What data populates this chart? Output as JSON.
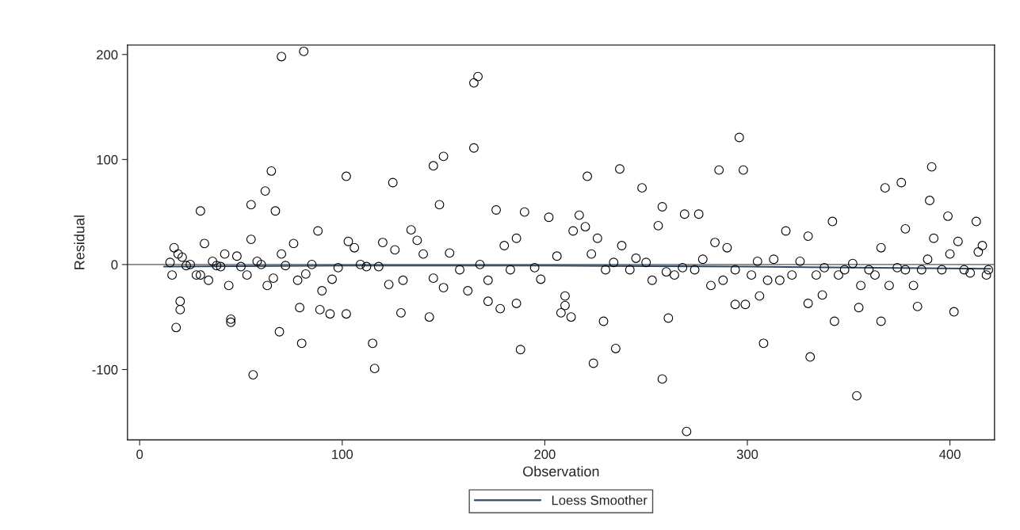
{
  "chart_data": {
    "type": "scatter",
    "xlabel": "Observation",
    "ylabel": "Residual",
    "xlim": [
      -6,
      422
    ],
    "ylim": [
      -167,
      209
    ],
    "xticks": [
      0,
      100,
      200,
      300,
      400
    ],
    "yticks": [
      -100,
      0,
      100,
      200
    ],
    "grid": false,
    "legend": "bottom",
    "ref_lines": [
      {
        "axis": "y",
        "value": 0,
        "color": "#555555"
      }
    ],
    "series": [
      {
        "marker": "circle",
        "color": "#000000",
        "x": [
          70,
          81,
          165,
          167,
          165,
          296,
          286,
          298,
          391,
          65,
          102,
          150,
          145,
          221,
          237,
          248,
          125,
          62,
          67,
          30,
          55,
          148,
          368,
          376,
          390,
          399,
          413,
          269,
          276,
          258,
          342,
          378,
          18,
          56,
          69,
          80,
          116,
          115,
          143,
          188,
          224,
          235,
          258,
          270,
          308,
          331,
          354,
          343,
          366,
          402,
          45,
          45,
          229,
          294,
          299,
          210,
          20,
          20,
          79,
          89,
          94,
          102,
          129,
          172,
          178,
          186,
          208,
          213,
          261,
          330,
          337,
          306,
          355,
          384,
          15,
          16,
          17,
          19,
          21,
          23,
          25,
          28,
          30,
          32,
          34,
          36,
          38,
          40,
          42,
          44,
          48,
          50,
          53,
          55,
          58,
          60,
          63,
          66,
          70,
          72,
          76,
          78,
          82,
          85,
          88,
          90,
          95,
          98,
          103,
          106,
          109,
          112,
          118,
          120,
          123,
          126,
          130,
          134,
          137,
          140,
          145,
          150,
          153,
          158,
          162,
          168,
          172,
          176,
          180,
          183,
          186,
          190,
          195,
          198,
          202,
          206,
          210,
          214,
          217,
          220,
          223,
          226,
          230,
          234,
          238,
          242,
          245,
          250,
          253,
          256,
          260,
          264,
          268,
          274,
          278,
          282,
          284,
          288,
          290,
          294,
          302,
          305,
          310,
          313,
          316,
          319,
          322,
          326,
          330,
          334,
          338,
          345,
          348,
          352,
          356,
          360,
          363,
          366,
          370,
          374,
          378,
          382,
          386,
          389,
          392,
          396,
          400,
          404,
          407,
          410,
          414,
          416,
          418,
          419
        ],
        "values": [
          198,
          203,
          173,
          179,
          111,
          121,
          90,
          90,
          93,
          89,
          84,
          103,
          94,
          84,
          91,
          73,
          78,
          70,
          51,
          51,
          57,
          57,
          73,
          78,
          61,
          46,
          41,
          48,
          48,
          55,
          41,
          34,
          -60,
          -105,
          -64,
          -75,
          -99,
          -75,
          -50,
          -81,
          -94,
          -80,
          -109,
          -159,
          -75,
          -88,
          -125,
          -54,
          -54,
          -45,
          -52,
          -55,
          -54,
          -38,
          -38,
          -39,
          -43,
          -35,
          -41,
          -43,
          -47,
          -47,
          -46,
          -35,
          -42,
          -37,
          -46,
          -50,
          -51,
          -37,
          -29,
          -30,
          -41,
          -40,
          2,
          -10,
          16,
          10,
          7,
          -1,
          0,
          -10,
          -10,
          20,
          -15,
          3,
          -1,
          -2,
          10,
          -20,
          8,
          -2,
          -10,
          24,
          3,
          0,
          -20,
          -13,
          10,
          -1,
          20,
          -15,
          -9,
          0,
          32,
          -25,
          -14,
          -3,
          22,
          16,
          0,
          -2,
          -2,
          21,
          -19,
          14,
          -15,
          33,
          23,
          10,
          -13,
          -22,
          11,
          -5,
          -25,
          0,
          -15,
          52,
          18,
          -5,
          25,
          50,
          -3,
          -14,
          45,
          8,
          -30,
          32,
          47,
          36,
          10,
          25,
          -5,
          2,
          18,
          -5,
          6,
          2,
          -15,
          37,
          -7,
          -10,
          -3,
          -5,
          5,
          -20,
          21,
          -15,
          16,
          -5,
          -10,
          3,
          -15,
          5,
          -15,
          32,
          -10,
          3,
          27,
          -10,
          -3,
          -10,
          -5,
          1,
          -20,
          -5,
          -10,
          16,
          -20,
          -3,
          -5,
          -20,
          -5,
          5,
          25,
          -5,
          10,
          22,
          -5,
          -8,
          12,
          18,
          -10,
          -5
        ]
      },
      {
        "type": "line",
        "name": "Loess Smoother",
        "color": "#2e4a66",
        "x": [
          12,
          100,
          200,
          300,
          420
        ],
        "values": [
          -2,
          -1,
          -1,
          -2,
          -4
        ]
      }
    ]
  }
}
